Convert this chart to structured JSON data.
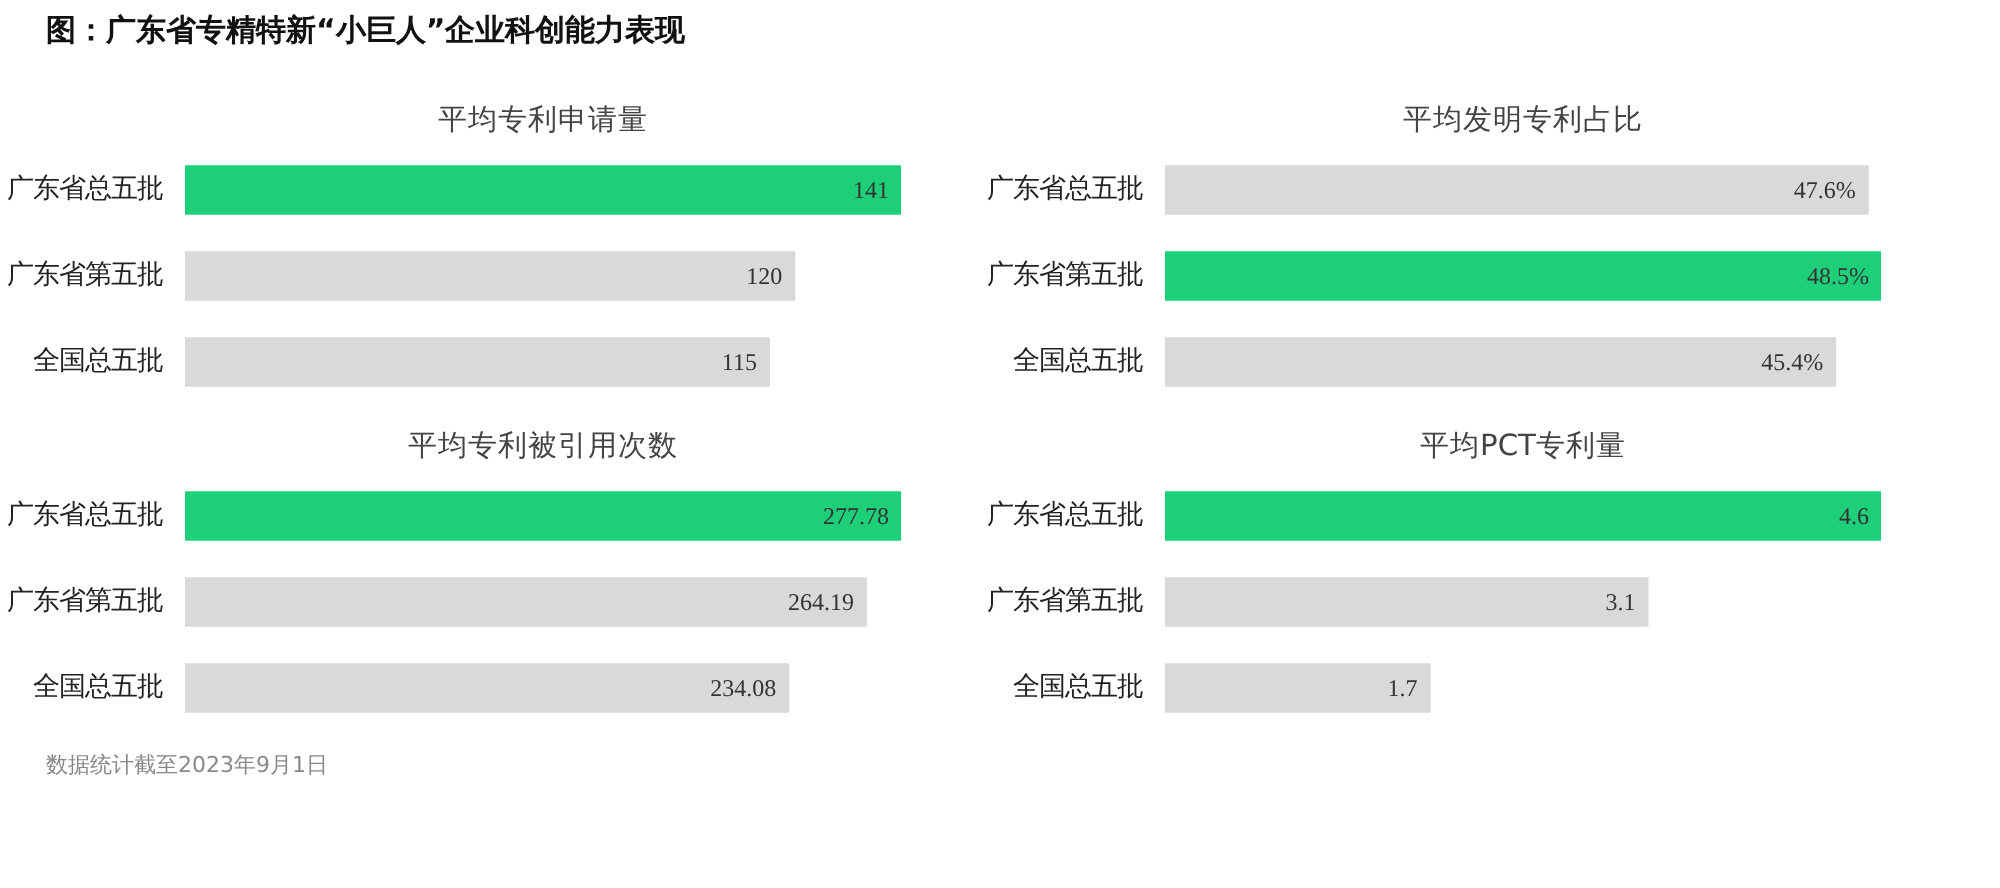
{
  "chart_data": [
    {
      "type": "bar",
      "orientation": "horizontal",
      "title": "平均专利申请量",
      "categories": [
        "广东省总五批",
        "广东省第五批",
        "全国总五批"
      ],
      "values": [
        141,
        120,
        115
      ],
      "colors": [
        "#1ecf7a",
        "#d9d9d9",
        "#d9d9d9"
      ],
      "value_labels": [
        "141",
        "120",
        "115"
      ],
      "annotations": [
        "图：广东省专精特新“小巨人”企业科创能力表现"
      ]
    },
    {
      "type": "bar",
      "orientation": "horizontal",
      "title": "平均发明专利占比",
      "categories": [
        "广东省总五批",
        "广东省第五批",
        "全国总五批"
      ],
      "values": [
        47.6,
        48.5,
        45.4
      ],
      "colors": [
        "#d9d9d9",
        "#1ecf7a",
        "#d9d9d9"
      ],
      "value_labels": [
        "47.6%",
        "48.5%",
        "45.4%"
      ]
    },
    {
      "type": "bar",
      "orientation": "horizontal",
      "title": "平均专利被引用次数",
      "categories": [
        "广东省总五批",
        "广东省第五批",
        "全国总五批"
      ],
      "values": [
        277.78,
        264.19,
        234.08
      ],
      "colors": [
        "#1ecf7a",
        "#d9d9d9",
        "#d9d9d9"
      ],
      "data_labels": true
    },
    {
      "type": "bar",
      "orientation": "horizontal",
      "title": "平均PCT专利量",
      "categories": [
        "广东省总五批",
        "广东省第五批",
        "全国总五批"
      ],
      "values": [
        4.6,
        3.1,
        1.7
      ],
      "colors": [
        "#1ecf7a",
        "#d9d9d9",
        "#d9d9d9"
      ],
      "data_labels": true,
      "annotations": [
        "数据统计截至2023年9月1日"
      ]
    }
  ]
}
